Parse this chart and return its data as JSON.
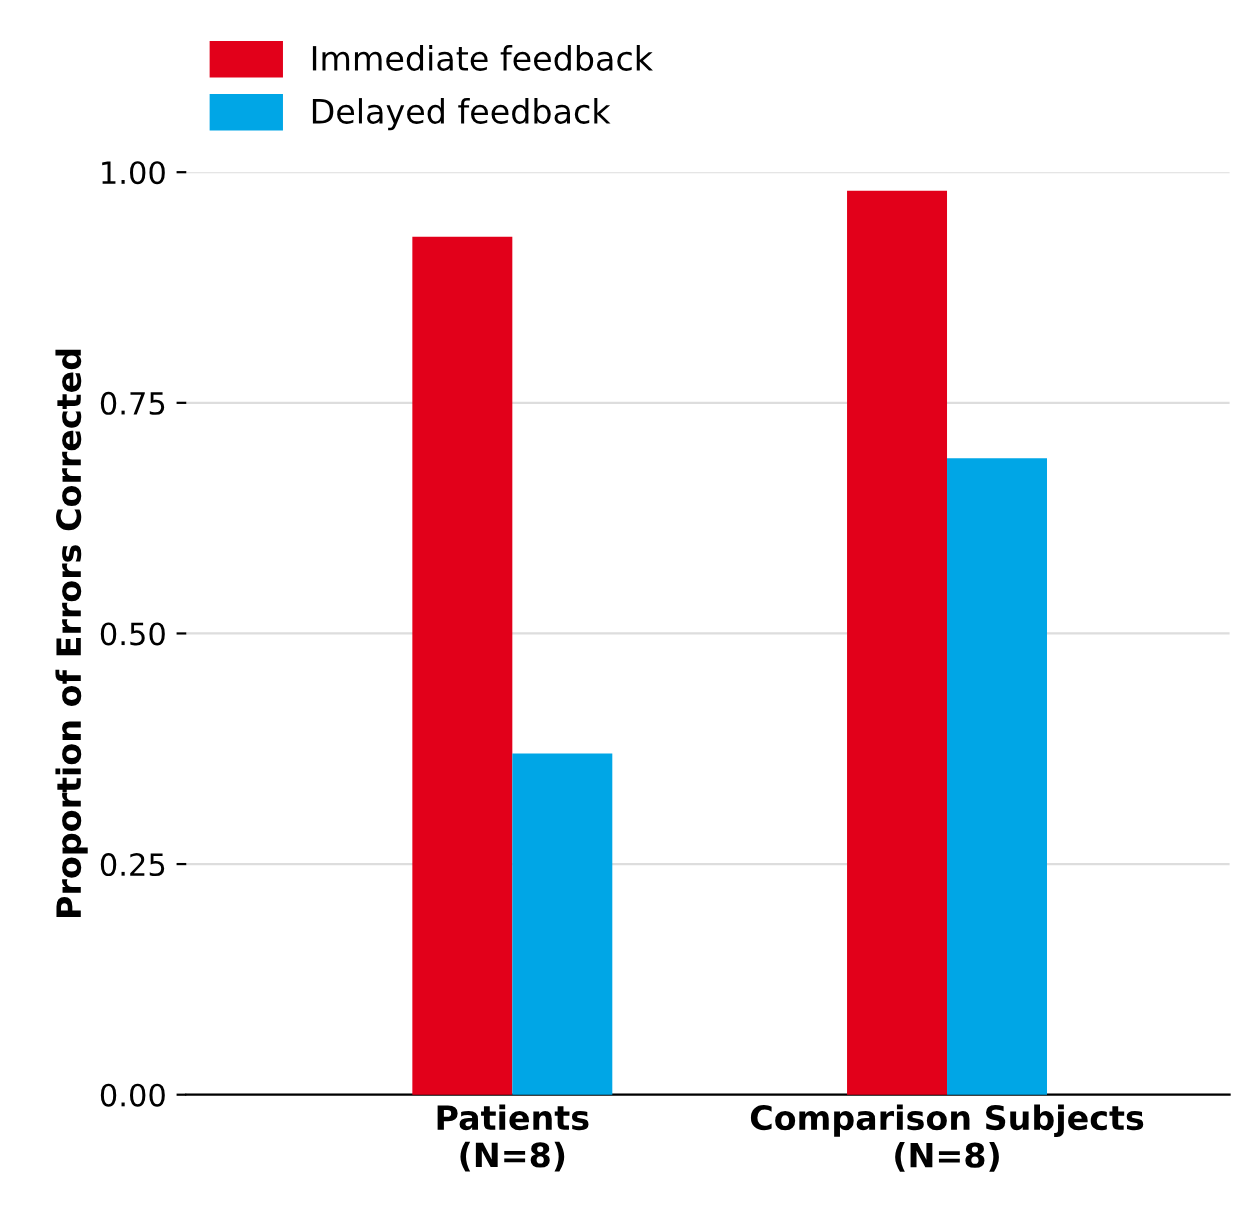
{
  "chart_data": {
    "type": "bar",
    "ylabel": "Proportion of Errors Corrected",
    "categories": [
      "Patients\n(N=8)",
      "Comparison Subjects\n(N=8)"
    ],
    "series": [
      {
        "name": "Immediate feedback",
        "color": "#e2001a",
        "values": [
          0.93,
          0.98
        ]
      },
      {
        "name": "Delayed feedback",
        "color": "#00a6e6",
        "values": [
          0.37,
          0.69
        ]
      }
    ],
    "ylim": [
      0,
      1
    ],
    "yticks": [
      {
        "value": 0,
        "label": "0.00"
      },
      {
        "value": 0.25,
        "label": "0.25"
      },
      {
        "value": 0.5,
        "label": "0.50"
      },
      {
        "value": 0.75,
        "label": "0.75"
      },
      {
        "value": 1,
        "label": "1.00"
      }
    ],
    "grid": "y",
    "legend": "top left"
  }
}
